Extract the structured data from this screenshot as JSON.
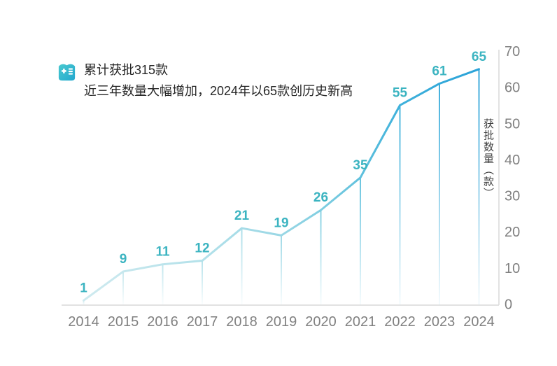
{
  "header": {
    "line1": "累计获批315款",
    "line2": "近三年数量大幅增加，2024年以65款创历史新高",
    "icon": "medical-record-icon"
  },
  "chart_data": {
    "type": "line",
    "categories": [
      "2014",
      "2015",
      "2016",
      "2017",
      "2018",
      "2019",
      "2020",
      "2021",
      "2022",
      "2023",
      "2024"
    ],
    "values": [
      1,
      9,
      11,
      12,
      21,
      19,
      26,
      35,
      55,
      61,
      65
    ],
    "title": "",
    "xlabel": "",
    "ylabel": "获批数量（款）",
    "ylim": [
      0,
      70
    ],
    "yticks": [
      0,
      10,
      20,
      30,
      40,
      50,
      60,
      70
    ],
    "y_axis_side": "right",
    "grid": false,
    "legend": false,
    "style": {
      "line_gradient": [
        "#cfeaef",
        "#b3e1ea",
        "#9ad7e5",
        "#80cee1",
        "#60c1dd",
        "#3fb1db",
        "#2aa2d8"
      ],
      "line_gradient_offsets": [
        0,
        0.3,
        0.5,
        0.6,
        0.7,
        0.8,
        1
      ],
      "drop_line_fade": true,
      "data_label_color": "#3cb4c1",
      "tick_label_color": "#808080",
      "axis_line_color": "#d9d9d9",
      "header_text_color": "#262626",
      "icon_color_top": "#49c9cf",
      "icon_color_bottom": "#23a8cf"
    }
  }
}
